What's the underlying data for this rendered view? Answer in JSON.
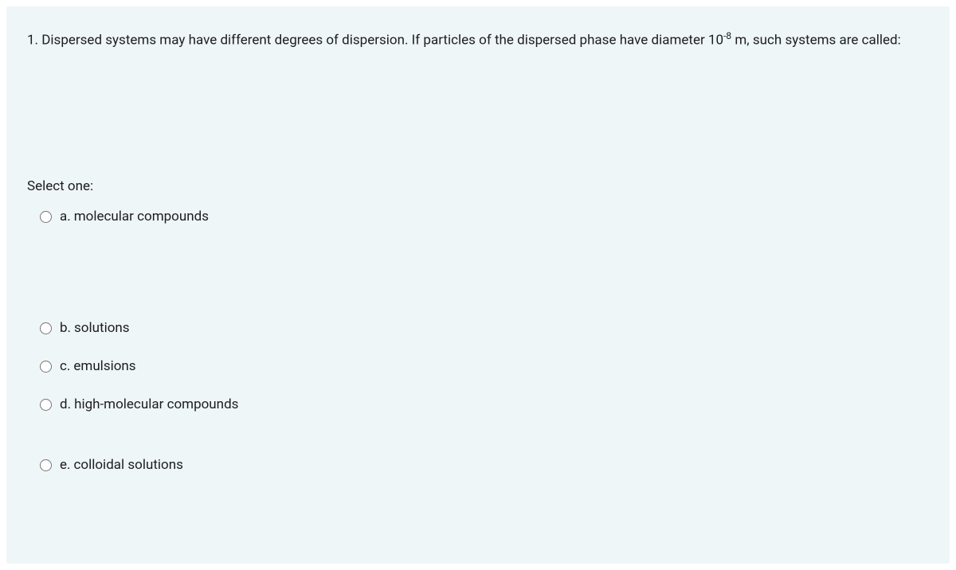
{
  "question": {
    "number": "1.",
    "text_before_sup": "Dispersed systems may have different degrees of dispersion. If particles of the dispersed phase have diameter 10",
    "sup": "-8",
    "text_after_sup": " m, such systems are called:"
  },
  "select_prompt": "Select one:",
  "options": [
    {
      "label": "a.",
      "text": "molecular compounds",
      "gap_class": "gap-large"
    },
    {
      "label": "b.",
      "text": "solutions",
      "gap_class": "gap-medium"
    },
    {
      "label": "c.",
      "text": "emulsions",
      "gap_class": "gap-medium"
    },
    {
      "label": "d.",
      "text": "high-molecular compounds",
      "gap_class": "gap-extra"
    },
    {
      "label": "e.",
      "text": "colloidal solutions",
      "gap_class": ""
    }
  ],
  "styling": {
    "background_color": "#eff6f8",
    "text_color": "#1d1d1d",
    "font_size": 17
  }
}
